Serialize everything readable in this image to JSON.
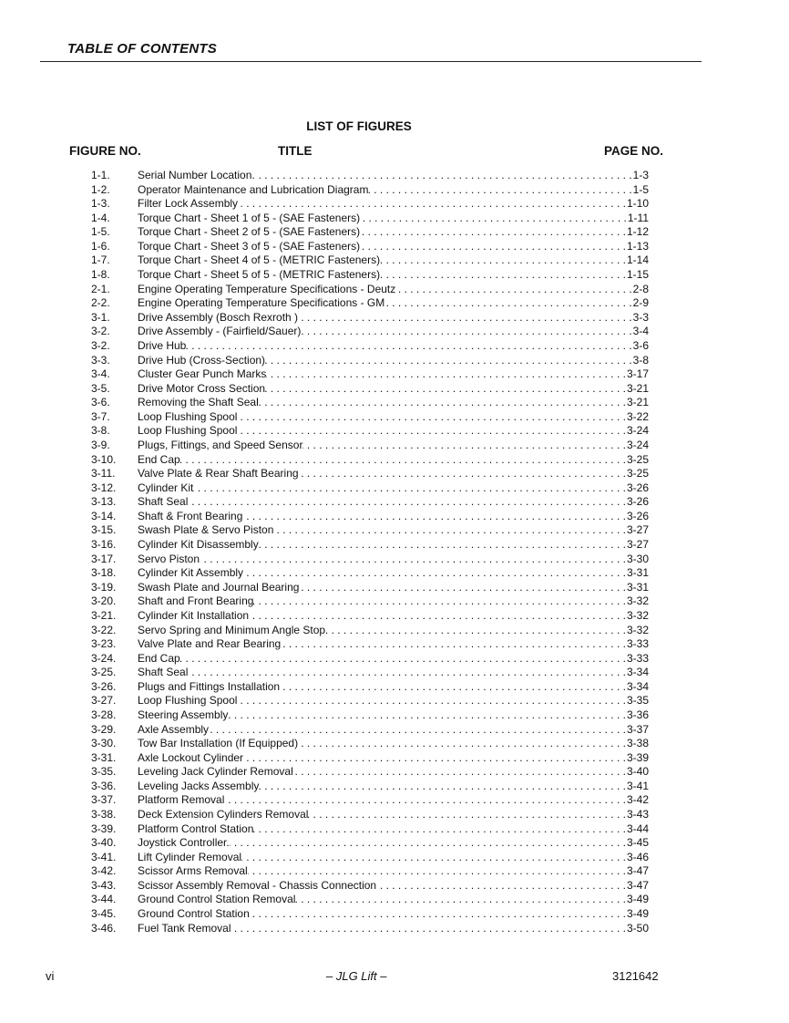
{
  "header": {
    "title": "TABLE OF CONTENTS"
  },
  "list": {
    "title": "LIST OF FIGURES",
    "col_figure": "FIGURE NO.",
    "col_title": "TITLE",
    "col_page": "PAGE NO.",
    "items": [
      {
        "no": "1-1.",
        "title": "Serial Number Location.",
        "page": "1-3"
      },
      {
        "no": "1-2.",
        "title": "Operator Maintenance and Lubrication Diagram",
        "page": "1-5"
      },
      {
        "no": "1-3.",
        "title": "Filter Lock Assembly",
        "page": "1-10"
      },
      {
        "no": "1-4.",
        "title": "Torque Chart - Sheet 1 of 5 - (SAE Fasteners)",
        "page": "1-11"
      },
      {
        "no": "1-5.",
        "title": "Torque Chart - Sheet 2 of 5 - (SAE Fasteners)",
        "page": "1-12"
      },
      {
        "no": "1-6.",
        "title": "Torque Chart - Sheet 3 of 5 - (SAE Fasteners)",
        "page": "1-13"
      },
      {
        "no": "1-7.",
        "title": "Torque Chart - Sheet 4 of 5 - (METRIC Fasteners)",
        "page": "1-14"
      },
      {
        "no": "1-8.",
        "title": "Torque Chart - Sheet 5 of 5 - (METRIC Fasteners)",
        "page": "1-15"
      },
      {
        "no": "2-1.",
        "title": "Engine Operating Temperature Specifications - Deutz",
        "page": "2-8"
      },
      {
        "no": "2-2.",
        "title": "Engine Operating Temperature Specifications - GM",
        "page": "2-9"
      },
      {
        "no": "3-1.",
        "title": "Drive Assembly (Bosch Rexroth )",
        "page": "3-3"
      },
      {
        "no": "3-2.",
        "title": "Drive Assembly - (Fairfield/Sauer)",
        "page": "3-4"
      },
      {
        "no": "3-2.",
        "title": "Drive Hub",
        "page": "3-6"
      },
      {
        "no": "3-3.",
        "title": "Drive Hub (Cross-Section)",
        "page": "3-8"
      },
      {
        "no": "3-4.",
        "title": "Cluster Gear Punch Marks",
        "page": "3-17"
      },
      {
        "no": "3-5.",
        "title": "Drive Motor Cross Section",
        "page": "3-21"
      },
      {
        "no": "3-6.",
        "title": "Removing the Shaft Seal",
        "page": "3-21"
      },
      {
        "no": "3-7.",
        "title": "Loop Flushing Spool",
        "page": "3-22"
      },
      {
        "no": "3-8.",
        "title": "Loop Flushing Spool",
        "page": "3-24"
      },
      {
        "no": "3-9.",
        "title": "Plugs, Fittings, and Speed Sensor",
        "page": "3-24"
      },
      {
        "no": "3-10.",
        "title": "End Cap",
        "page": "3-25"
      },
      {
        "no": "3-11.",
        "title": "Valve Plate & Rear Shaft Bearing",
        "page": "3-25"
      },
      {
        "no": "3-12.",
        "title": "Cylinder Kit",
        "page": "3-26"
      },
      {
        "no": "3-13.",
        "title": "Shaft Seal",
        "page": "3-26"
      },
      {
        "no": "3-14.",
        "title": "Shaft & Front Bearing",
        "page": "3-26"
      },
      {
        "no": "3-15.",
        "title": "Swash Plate & Servo Piston",
        "page": "3-27"
      },
      {
        "no": "3-16.",
        "title": "Cylinder Kit Disassembly",
        "page": "3-27"
      },
      {
        "no": "3-17.",
        "title": "Servo Piston",
        "page": "3-30"
      },
      {
        "no": "3-18.",
        "title": "Cylinder Kit Assembly",
        "page": "3-31"
      },
      {
        "no": "3-19.",
        "title": "Swash Plate and Journal Bearing",
        "page": "3-31"
      },
      {
        "no": "3-20.",
        "title": "Shaft and Front Bearing",
        "page": "3-32"
      },
      {
        "no": "3-21.",
        "title": "Cylinder Kit Installation",
        "page": "3-32"
      },
      {
        "no": "3-22.",
        "title": "Servo Spring and Minimum Angle Stop",
        "page": "3-32"
      },
      {
        "no": "3-23.",
        "title": "Valve Plate and Rear Bearing",
        "page": "3-33"
      },
      {
        "no": "3-24.",
        "title": "End Cap",
        "page": "3-33"
      },
      {
        "no": "3-25.",
        "title": "Shaft Seal",
        "page": "3-34"
      },
      {
        "no": "3-26.",
        "title": "Plugs and Fittings Installation",
        "page": "3-34"
      },
      {
        "no": "3-27.",
        "title": "Loop Flushing Spool",
        "page": "3-35"
      },
      {
        "no": "3-28.",
        "title": "Steering Assembly",
        "page": "3-36"
      },
      {
        "no": "3-29.",
        "title": "Axle Assembly",
        "page": "3-37"
      },
      {
        "no": "3-30.",
        "title": "Tow Bar Installation (If Equipped)",
        "page": "3-38"
      },
      {
        "no": "3-31.",
        "title": "Axle Lockout Cylinder",
        "page": "3-39"
      },
      {
        "no": "3-35.",
        "title": "Leveling Jack Cylinder Removal",
        "page": "3-40"
      },
      {
        "no": "3-36.",
        "title": "Leveling Jacks Assembly",
        "page": "3-41"
      },
      {
        "no": "3-37.",
        "title": "Platform Removal",
        "page": "3-42"
      },
      {
        "no": "3-38.",
        "title": "Deck Extension Cylinders Removal",
        "page": "3-43"
      },
      {
        "no": "3-39.",
        "title": "Platform Control Station",
        "page": "3-44"
      },
      {
        "no": "3-40.",
        "title": "Joystick Controller.",
        "page": "3-45"
      },
      {
        "no": "3-41.",
        "title": "Lift Cylinder Removal",
        "page": "3-46"
      },
      {
        "no": "3-42.",
        "title": "Scissor Arms Removal",
        "page": "3-47"
      },
      {
        "no": "3-43.",
        "title": "Scissor Assembly Removal - Chassis Connection",
        "page": "3-47"
      },
      {
        "no": "3-44.",
        "title": "Ground Control Station Removal",
        "page": "3-49"
      },
      {
        "no": "3-45.",
        "title": "Ground Control Station",
        "page": "3-49"
      },
      {
        "no": "3-46.",
        "title": "Fuel Tank Removal",
        "page": "3-50"
      }
    ]
  },
  "footer": {
    "page": "vi",
    "center": "– JLG Lift –",
    "doc_no": "3121642"
  }
}
